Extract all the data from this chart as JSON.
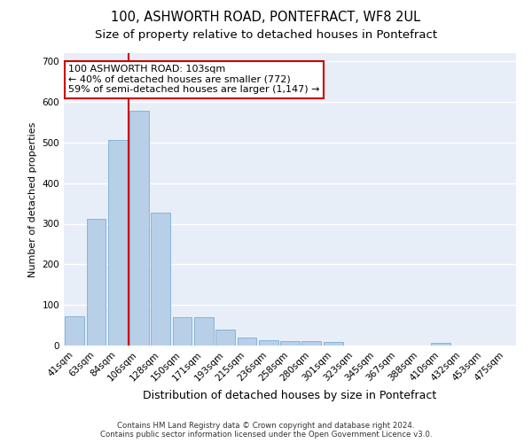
{
  "title": "100, ASHWORTH ROAD, PONTEFRACT, WF8 2UL",
  "subtitle": "Size of property relative to detached houses in Pontefract",
  "xlabel": "Distribution of detached houses by size in Pontefract",
  "ylabel": "Number of detached properties",
  "footer_line1": "Contains HM Land Registry data © Crown copyright and database right 2024.",
  "footer_line2": "Contains public sector information licensed under the Open Government Licence v3.0.",
  "categories": [
    "41sqm",
    "63sqm",
    "84sqm",
    "106sqm",
    "128sqm",
    "150sqm",
    "171sqm",
    "193sqm",
    "215sqm",
    "236sqm",
    "258sqm",
    "280sqm",
    "301sqm",
    "323sqm",
    "345sqm",
    "367sqm",
    "388sqm",
    "410sqm",
    "432sqm",
    "453sqm",
    "475sqm"
  ],
  "values": [
    72,
    312,
    507,
    578,
    328,
    70,
    70,
    40,
    20,
    14,
    11,
    11,
    8,
    0,
    0,
    0,
    0,
    7,
    0,
    0,
    0
  ],
  "bar_color": "#b8cfe8",
  "bar_edge_color": "#7aafd4",
  "vline_x_index": 3,
  "vline_color": "#cc0000",
  "annotation_text": "100 ASHWORTH ROAD: 103sqm\n← 40% of detached houses are smaller (772)\n59% of semi-detached houses are larger (1,147) →",
  "annotation_box_color": "white",
  "annotation_box_edge_color": "#cc0000",
  "ylim": [
    0,
    720
  ],
  "yticks": [
    0,
    100,
    200,
    300,
    400,
    500,
    600,
    700
  ],
  "background_color": "#e8eef8",
  "grid_color": "white",
  "title_fontsize": 10.5,
  "subtitle_fontsize": 9.5,
  "ylabel_fontsize": 8,
  "xlabel_fontsize": 9,
  "tick_fontsize": 7.5,
  "annotation_fontsize": 8,
  "footer_fontsize": 6.2
}
